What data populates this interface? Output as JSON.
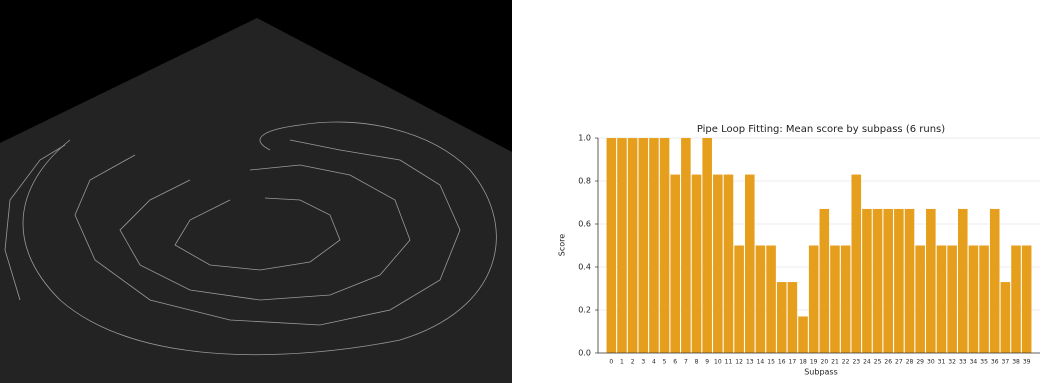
{
  "chart_data": {
    "type": "bar",
    "title": "Pipe Loop Fitting: Mean score by subpass (6 runs)",
    "x_label": "Subpass",
    "y_label": "Score",
    "categories": [
      "0",
      "1",
      "2",
      "3",
      "4",
      "5",
      "6",
      "7",
      "8",
      "9",
      "10",
      "11",
      "12",
      "13",
      "14",
      "15",
      "16",
      "17",
      "18",
      "19",
      "20",
      "21",
      "22",
      "23",
      "24",
      "25",
      "26",
      "27",
      "28",
      "29",
      "30",
      "31",
      "32",
      "33",
      "34",
      "35",
      "36",
      "37",
      "38",
      "39"
    ],
    "values": [
      1.0,
      1.0,
      1.0,
      1.0,
      1.0,
      1.0,
      0.83,
      1.0,
      0.83,
      1.0,
      0.83,
      0.83,
      0.5,
      0.83,
      0.5,
      0.5,
      0.33,
      0.33,
      0.17,
      0.5,
      0.67,
      0.5,
      0.5,
      0.83,
      0.67,
      0.67,
      0.67,
      0.67,
      0.67,
      0.5,
      0.67,
      0.5,
      0.5,
      0.67,
      0.5,
      0.5,
      0.67,
      0.33,
      0.5,
      0.5
    ],
    "color": "#e69f1c",
    "ylim": [
      0,
      1
    ],
    "yticks": [
      {
        "value": 0,
        "label": "0.0"
      },
      0.2,
      0.4,
      0.6,
      0.8,
      {
        "value": 1,
        "label": "1.0"
      }
    ],
    "grid": true
  }
}
